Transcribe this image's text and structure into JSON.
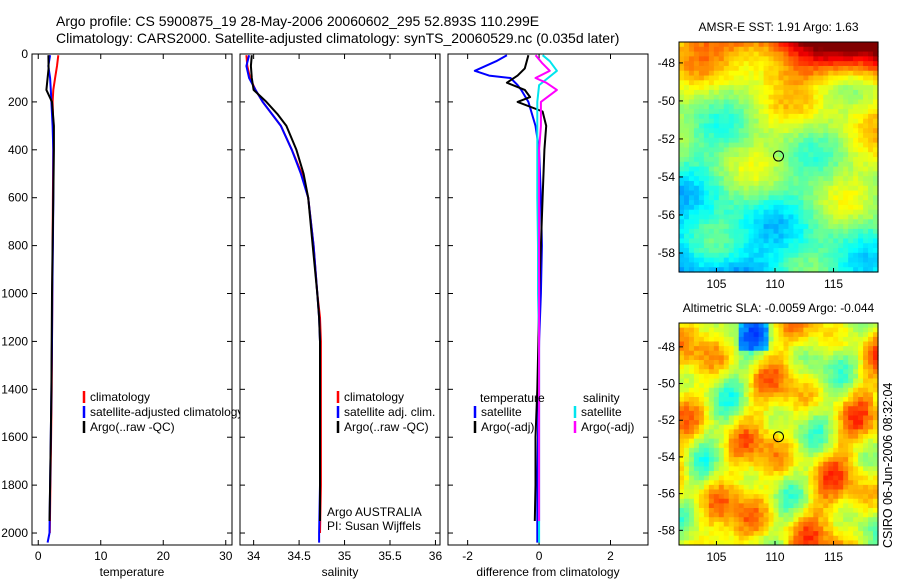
{
  "title_line1": "Argo profile: CS 5900875_19 28-May-2006 20060602_295 52.893S 110.299E",
  "title_line2": "Climatology: CARS2000. Satellite-adjusted climatology: synTS_20060529.nc (0.035d later)",
  "side_stamp": "CSIRO 06-Jun-2006 08:32:04",
  "colors": {
    "climatology": "#ff0000",
    "satellite": "#0000ff",
    "argo": "#000000",
    "sat_salinity": "#00e5ee",
    "argo_salinity_adj": "#ff00ff"
  },
  "chart_data": [
    {
      "type": "line",
      "id": "temperature",
      "xlabel": "temperature",
      "xlim": [
        -1,
        31
      ],
      "xticks": [
        0,
        10,
        20,
        30
      ],
      "ylim": [
        2050,
        0
      ],
      "yticks": [
        0,
        200,
        400,
        600,
        800,
        1000,
        1200,
        1400,
        1600,
        1800,
        2000
      ],
      "legend": [
        "climatology",
        "satellite-adjusted climatology",
        "Argo(..raw -QC)"
      ],
      "series": [
        {
          "name": "climatology",
          "color": "#ff0000",
          "points": [
            [
              3.2,
              5
            ],
            [
              3.0,
              50
            ],
            [
              2.7,
              100
            ],
            [
              2.4,
              150
            ],
            [
              2.3,
              200
            ],
            [
              2.4,
              300
            ],
            [
              2.4,
              400
            ],
            [
              2.35,
              600
            ],
            [
              2.3,
              800
            ],
            [
              2.25,
              1000
            ],
            [
              2.2,
              1200
            ],
            [
              2.15,
              1400
            ],
            [
              2.05,
              1600
            ],
            [
              1.95,
              1800
            ],
            [
              1.85,
              2000
            ]
          ]
        },
        {
          "name": "satellite-adjusted climatology",
          "color": "#0000ff",
          "points": [
            [
              1.9,
              5
            ],
            [
              1.6,
              50
            ],
            [
              1.9,
              100
            ],
            [
              2.0,
              150
            ],
            [
              2.1,
              200
            ],
            [
              2.3,
              300
            ],
            [
              2.4,
              400
            ],
            [
              2.4,
              600
            ],
            [
              2.35,
              800
            ],
            [
              2.25,
              1000
            ],
            [
              2.2,
              1200
            ],
            [
              2.1,
              1400
            ],
            [
              2.0,
              1600
            ],
            [
              1.9,
              1800
            ],
            [
              1.8,
              2000
            ],
            [
              1.5,
              2040
            ]
          ]
        },
        {
          "name": "Argo(..raw -QC)",
          "color": "#000000",
          "points": [
            [
              1.63,
              5
            ],
            [
              1.65,
              60
            ],
            [
              1.5,
              100
            ],
            [
              1.3,
              150
            ],
            [
              2.2,
              200
            ],
            [
              2.5,
              300
            ],
            [
              2.5,
              400
            ],
            [
              2.4,
              600
            ],
            [
              2.3,
              800
            ],
            [
              2.2,
              1000
            ],
            [
              2.15,
              1200
            ],
            [
              2.1,
              1400
            ],
            [
              2.0,
              1600
            ],
            [
              1.9,
              1800
            ],
            [
              1.8,
              1950
            ]
          ]
        }
      ]
    },
    {
      "type": "line",
      "id": "salinity",
      "xlabel": "salinity",
      "xlim": [
        33.85,
        36.05
      ],
      "xticks": [
        34,
        34.5,
        35,
        35.5,
        36
      ],
      "ylim": [
        2050,
        0
      ],
      "legend": [
        "climatology",
        "satellite adj. clim.",
        "Argo(..raw -QC)"
      ],
      "annotations": [
        "Argo AUSTRALIA",
        "PI: Susan Wijffels"
      ],
      "series": [
        {
          "name": "climatology",
          "color": "#ff0000",
          "points": [
            [
              33.92,
              5
            ],
            [
              33.93,
              50
            ],
            [
              33.96,
              100
            ],
            [
              34.02,
              150
            ],
            [
              34.1,
              200
            ],
            [
              34.2,
              250
            ],
            [
              34.3,
              300
            ],
            [
              34.42,
              400
            ],
            [
              34.53,
              500
            ],
            [
              34.6,
              600
            ],
            [
              34.66,
              800
            ],
            [
              34.7,
              1000
            ],
            [
              34.73,
              1100
            ],
            [
              34.74,
              1200
            ],
            [
              34.74,
              1400
            ],
            [
              34.74,
              1600
            ],
            [
              34.74,
              1800
            ],
            [
              34.73,
              2000
            ]
          ]
        },
        {
          "name": "satellite adj. clim.",
          "color": "#0000ff",
          "points": [
            [
              33.95,
              5
            ],
            [
              33.92,
              50
            ],
            [
              33.95,
              100
            ],
            [
              34.02,
              150
            ],
            [
              34.1,
              200
            ],
            [
              34.2,
              250
            ],
            [
              34.3,
              300
            ],
            [
              34.42,
              400
            ],
            [
              34.52,
              500
            ],
            [
              34.6,
              600
            ],
            [
              34.66,
              800
            ],
            [
              34.7,
              1000
            ],
            [
              34.72,
              1100
            ],
            [
              34.73,
              1200
            ],
            [
              34.73,
              1400
            ],
            [
              34.73,
              1600
            ],
            [
              34.73,
              1800
            ],
            [
              34.72,
              2000
            ],
            [
              34.72,
              2040
            ]
          ]
        },
        {
          "name": "Argo(..raw -QC)",
          "color": "#000000",
          "points": [
            [
              33.98,
              5
            ],
            [
              33.97,
              50
            ],
            [
              33.98,
              100
            ],
            [
              34.0,
              150
            ],
            [
              34.14,
              200
            ],
            [
              34.26,
              250
            ],
            [
              34.36,
              300
            ],
            [
              34.47,
              400
            ],
            [
              34.55,
              500
            ],
            [
              34.6,
              600
            ],
            [
              34.65,
              800
            ],
            [
              34.7,
              1000
            ],
            [
              34.72,
              1100
            ],
            [
              34.73,
              1200
            ],
            [
              34.73,
              1400
            ],
            [
              34.73,
              1600
            ],
            [
              34.73,
              1800
            ],
            [
              34.73,
              1950
            ]
          ]
        }
      ]
    },
    {
      "type": "line",
      "id": "difference",
      "xlabel": "difference from climatology",
      "xlim": [
        -2.55,
        3.05
      ],
      "xticks": [
        -2,
        0,
        2
      ],
      "ylim": [
        2050,
        0
      ],
      "legend_temperature": {
        "title": "temperature",
        "entries": [
          "satellite",
          "Argo(-adj)"
        ]
      },
      "legend_salinity": {
        "title": "salinity",
        "entries": [
          "satellite",
          "Argo(-adj)"
        ]
      },
      "series": [
        {
          "name": "temperature satellite",
          "color": "#0000ff",
          "points": [
            [
              -0.9,
              5
            ],
            [
              -1.2,
              30
            ],
            [
              -1.8,
              70
            ],
            [
              -1.4,
              90
            ],
            [
              -0.8,
              100
            ],
            [
              -0.6,
              130
            ],
            [
              -0.5,
              150
            ],
            [
              -0.3,
              200
            ],
            [
              -0.1,
              300
            ],
            [
              0,
              400
            ],
            [
              0.05,
              600
            ],
            [
              0.08,
              800
            ],
            [
              0.05,
              1000
            ],
            [
              0,
              1200
            ],
            [
              -0.02,
              1400
            ],
            [
              -0.03,
              1600
            ],
            [
              -0.05,
              1800
            ],
            [
              -0.05,
              2000
            ],
            [
              -0.05,
              2040
            ]
          ]
        },
        {
          "name": "temperature Argo(-adj)",
          "color": "#000000",
          "points": [
            [
              -0.3,
              5
            ],
            [
              -0.4,
              60
            ],
            [
              -0.6,
              90
            ],
            [
              -0.9,
              120
            ],
            [
              -0.4,
              150
            ],
            [
              -0.25,
              180
            ],
            [
              -0.6,
              200
            ],
            [
              0.1,
              240
            ],
            [
              0.2,
              300
            ],
            [
              0.15,
              400
            ],
            [
              0.1,
              600
            ],
            [
              0.05,
              800
            ],
            [
              0,
              1000
            ],
            [
              -0.02,
              1200
            ],
            [
              -0.05,
              1400
            ],
            [
              -0.1,
              1600
            ],
            [
              -0.1,
              1800
            ],
            [
              -0.12,
              1950
            ]
          ]
        },
        {
          "name": "salinity satellite",
          "color": "#00e5ee",
          "points": [
            [
              0.1,
              5
            ],
            [
              0.3,
              30
            ],
            [
              0.5,
              70
            ],
            [
              0.25,
              100
            ],
            [
              0,
              130
            ],
            [
              -0.05,
              200
            ],
            [
              -0.05,
              300
            ],
            [
              -0.05,
              400
            ],
            [
              -0.05,
              600
            ],
            [
              -0.03,
              800
            ],
            [
              -0.03,
              1000
            ],
            [
              0,
              1200
            ],
            [
              0,
              1400
            ],
            [
              0,
              1600
            ],
            [
              0,
              1800
            ],
            [
              0,
              2000
            ],
            [
              0,
              2040
            ]
          ]
        },
        {
          "name": "salinity Argo(-adj)",
          "color": "#ff00ff",
          "points": [
            [
              -0.1,
              5
            ],
            [
              0.1,
              40
            ],
            [
              0.3,
              70
            ],
            [
              -0.1,
              100
            ],
            [
              0.2,
              120
            ],
            [
              0.5,
              150
            ],
            [
              0.05,
              200
            ],
            [
              0.05,
              300
            ],
            [
              0,
              400
            ],
            [
              0,
              600
            ],
            [
              0,
              800
            ],
            [
              0,
              1000
            ],
            [
              0,
              1200
            ],
            [
              0,
              1400
            ],
            [
              0,
              1600
            ],
            [
              0,
              1800
            ],
            [
              0,
              1950
            ]
          ]
        }
      ]
    },
    {
      "type": "heatmap",
      "id": "sst_map",
      "title": "AMSR-E SST: 1.91 Argo: 1.63",
      "xticks": [
        105,
        110,
        115
      ],
      "yticks": [
        -48,
        -50,
        -52,
        -54,
        -56,
        -58
      ],
      "xlim": [
        101.8,
        118.8
      ],
      "ylim": [
        -59,
        -46.9
      ],
      "marker": [
        110.3,
        -52.9
      ]
    },
    {
      "type": "heatmap",
      "id": "sla_map",
      "title": "Altimetric SLA: -0.0059 Argo: -0.044",
      "xticks": [
        105,
        110,
        115
      ],
      "yticks": [
        -48,
        -50,
        -52,
        -54,
        -56,
        -58
      ],
      "xlim": [
        101.8,
        118.8
      ],
      "ylim": [
        -58.8,
        -46.7
      ],
      "marker": [
        110.3,
        -52.9
      ]
    }
  ]
}
